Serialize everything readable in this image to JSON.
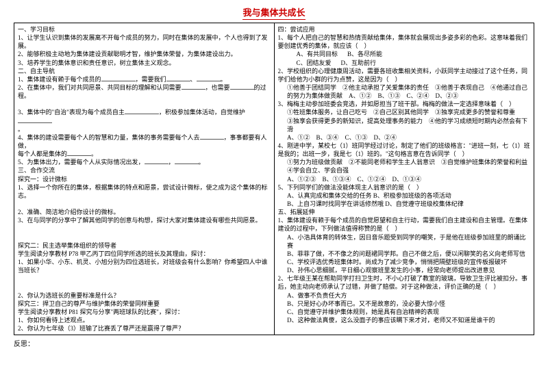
{
  "title": "我与集体共成长",
  "left": {
    "h1": "一、学习目标",
    "l1": "1、让学生认识到集体的发展离不开每个成员的努力，同时在集体的发展中，个人也得到了发展。",
    "l2": "2、能够积极主动地为集体建设贡献聪明才智，维护集体荣誉，为集体建设出力。",
    "l3": "3、培养学生的集体意识和责任意识，树立集体主义观念。",
    "h2": "二、自主导航",
    "n1a": "1、集体建设有赖于每个成员的",
    "n1b": "，需要我们",
    "n1c": "。",
    "n2a": "2、在集体中，我们对共同愿景、共同目标的理解和认同需要",
    "n2b": "，也需要",
    "n2c": "的过程。",
    "n3a": "3、集体中的\"自治\"表现为每个成员自主",
    "n3b": "，积极参加集体活动，自觉维护",
    "n3c": "。",
    "n4a": "4、集体的建设需要每个人的智慧和力量，集体的事务需要每个人去",
    "n4b": "，事事都要有人做，",
    "n4c": "每个人都是集体的",
    "n4d": "。",
    "n5a": "5、为集体出力，需要每个人从实际情况出发，",
    "n5b": "，",
    "n5c": "。",
    "h3": "三、合作交流",
    "t1": "探究一：设计微标",
    "t1a": "1、选择一个你所在的集体，根据集体的特点和愿景，尝试设计微标，使之成为这个集体的标志。",
    "t1b": "2、准确、简洁地介绍你设计的微标。",
    "t1c": "3、在与同学的分享中了解其他同学的创意与构想，探讨大家对集体建设有哪些共同愿景。",
    "t2": "探究二：民主选举集体组织的领导者",
    "t2a": "学生阅读分享教材 P78 甲乙丙丁四位同学所选的班长及其理由，探讨：",
    "t2b": "1、如果小华、小东、机灵、小旭分别为四位选班长，对班级会有什么影响？你希望四人中谁当班长？",
    "t2c": "2、你认为选班长的重要标准是什么？",
    "t3": "探究三：捍卫自己的尊严与维护集体的荣誉同样重要",
    "t3a": "学生阅读分享教材 P81 探究与分享\"两班球队的比赛\"，探讨：",
    "t3b": "1、你如何看待上述观点。",
    "t3c": "2、你认为七年级（3）班输了比赛丢了尊严还是赢得了尊严？"
  },
  "right": {
    "h4": "四：尝试应用",
    "r1": "1、每个人把自己的智慧和热情贡献给集体，集体就会展现出多姿多彩的色彩。这意味着我们要创建优秀的集体，就应该（　）",
    "o1a": "A、有共同目标",
    "o1b": "B、各尽所能",
    "o1c": "C、团结友爱",
    "o1d": "D、互助前行",
    "r2": "2、学校组织的心理健康周活动，需要各班收集相关资料，小跃同学主动接过了这个任务，同学们给他为小群的行为点赞，这是因为（　）",
    "r2a": "①他善于团结同学　②他主动承担了关爱集体的责任　③他善于表现自己　④他通过自己的努力为集体做贡献　A、①②　B、①③　C、②④　D、②③",
    "r3": "3、梅梅主动参加班委会竞选，并如愿担当了班干部。梅梅的做法一定选择意味着（　）",
    "r3a": "①牲班集体服务，让自己吃亏　②自己区别其他同学　③独享完成更多的赞誉和尊重",
    "r3b": "③独享会获得更多的新知识，提高处理事务的能力　④他的学习成绩短时期内必然会有下滑",
    "r3c": "A、①②　B、③④　C、①③　D、②④",
    "r4": "4、刚进中学，某校七（1）班同学经过讨论，制定了他们的班级格言：\"进班一刻，七（1）班是我的；出班一步，我是七（1）班的。\"这句格言意在告诉同学（　）",
    "r4a": "①努力为班级做贡献　②不能同老师和学生主人翁意识　③自觉维护班集体的荣誉和利益　④学会自立、学会自强",
    "r4b": "A、①②③　B、①③④　C、①②④　D、①③④",
    "r5": "5、下列同学们的做法没能体现主人翁意识的是（　）",
    "r5a": "A、认真完成和集体交给的任务 B、积极参加班级的各项活动",
    "r5b": "B、上自习课时找同学在讲话修然哦 D、自觉遵守班级校集体纪律",
    "h5": "五、拓展延伸",
    "e1": "1、集体建设有赖于每个成员的自觉愿望和自主行动，需要我们自主建设和自主管理。在集体建设的过程中，下列做法值得称赞的是（　）",
    "e1a": "A、小浩具体育的转体生，因日音乐题受到同学的嘲笑，于是他在班级参加班里的朗诵比赛",
    "e1b": "B、菲菲了做，不不像之的问题裙同学邦。自己不做之后，便以闲聊笑的名义向老师写信",
    "e1c": "C、学校评选优秀班集体时。尚成为了减少竞争，悄悄把隔壁班级的宣传板报破坏",
    "e1d": "D、孙伟心思细腻，平日细心观察班里发生的小事，经常向老师提出改进意见",
    "e2": "2、七年级王某在帮助同学打扫卫生时，不小心打破了教室的玻璃，导致卫生评比被扣分。事后，她主动向老师承认了过错，并做了赔偿。对于这种做法，评价正确的是（　）",
    "e2a": "A、做事不负责任大方",
    "e2b": "B、只是好心办坏事而已。又不是故意的，没必要大惊小怪",
    "e2c": "C、自觉遵守并维护集体规则，她是具有自治精神的表现",
    "e2d": "D、这种做法真傻，这么没面子的事应该瞒下来才对，老师又不知道是谁干的"
  },
  "footer": "反思："
}
